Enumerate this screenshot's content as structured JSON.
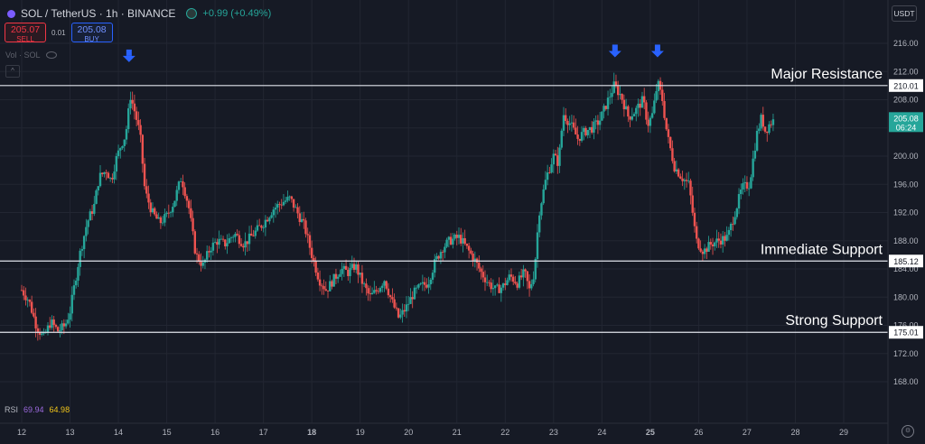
{
  "header": {
    "title": "SOL / TetherUS · 1h · BINANCE",
    "change": "+0.99 (+0.49%)"
  },
  "trade": {
    "sell_price": "205.07",
    "sell_label": "SELL",
    "spread": "0.01",
    "buy_price": "205.08",
    "buy_label": "BUY"
  },
  "volume_label": "Vol · SOL",
  "currency_button": "USDT",
  "rsi": {
    "label": "RSI",
    "value1": "69.94",
    "value2": "64.98"
  },
  "colors": {
    "up": "#26a69a",
    "down": "#ef5350",
    "level_line": "#e0e3eb",
    "arrow": "#2962ff",
    "background": "#161a25"
  },
  "chart_data": {
    "type": "candlestick",
    "y_axis": {
      "ticks": [
        168,
        172,
        176,
        180,
        184,
        188,
        192,
        196,
        200,
        204,
        208,
        212,
        216
      ],
      "tick_labels": [
        "168.00",
        "172.00",
        "176.00",
        "180.00",
        "184.00",
        "188.00",
        "192.00",
        "196.00",
        "200.00",
        "204.00",
        "208.00",
        "212.00",
        "216.00"
      ],
      "range": [
        165,
        219
      ]
    },
    "x_axis": {
      "labels": [
        {
          "day": 12,
          "label": "12",
          "bold": false
        },
        {
          "day": 13,
          "label": "13",
          "bold": false
        },
        {
          "day": 14,
          "label": "14",
          "bold": false
        },
        {
          "day": 15,
          "label": "15",
          "bold": false
        },
        {
          "day": 16,
          "label": "16",
          "bold": false
        },
        {
          "day": 17,
          "label": "17",
          "bold": false
        },
        {
          "day": 18,
          "label": "18",
          "bold": true
        },
        {
          "day": 19,
          "label": "19",
          "bold": false
        },
        {
          "day": 20,
          "label": "20",
          "bold": false
        },
        {
          "day": 21,
          "label": "21",
          "bold": false
        },
        {
          "day": 22,
          "label": "22",
          "bold": false
        },
        {
          "day": 23,
          "label": "23",
          "bold": false
        },
        {
          "day": 24,
          "label": "24",
          "bold": false
        },
        {
          "day": 25,
          "label": "25",
          "bold": true
        },
        {
          "day": 26,
          "label": "26",
          "bold": false
        },
        {
          "day": 27,
          "label": "27",
          "bold": false
        },
        {
          "day": 28,
          "label": "28",
          "bold": false
        },
        {
          "day": 29,
          "label": "29",
          "bold": false
        }
      ],
      "range": [
        11.6,
        29.9
      ]
    },
    "horizontal_levels": [
      {
        "price": 210.01,
        "label": "210.01",
        "annotation": "Major Resistance"
      },
      {
        "price": 185.12,
        "label": "185.12",
        "annotation": "Immediate Support"
      },
      {
        "price": 175.01,
        "label": "175.01",
        "annotation": "Strong Support"
      }
    ],
    "current_price": {
      "price": 205.08,
      "label": "205.08",
      "countdown": "06:24"
    },
    "markers": [
      {
        "day": 14.22,
        "price": 212.3,
        "type": "arrow-down"
      },
      {
        "day": 24.27,
        "price": 213.0,
        "type": "arrow-down"
      },
      {
        "day": 25.15,
        "price": 213.0,
        "type": "arrow-down"
      }
    ],
    "price_path": [
      [
        12.0,
        181.0
      ],
      [
        12.15,
        179.5
      ],
      [
        12.3,
        176.0
      ],
      [
        12.45,
        174.2
      ],
      [
        12.6,
        176.5
      ],
      [
        12.75,
        175.2
      ],
      [
        12.9,
        176.0
      ],
      [
        13.0,
        178.0
      ],
      [
        13.1,
        182.0
      ],
      [
        13.2,
        186.0
      ],
      [
        13.35,
        190.5
      ],
      [
        13.5,
        193.0
      ],
      [
        13.6,
        197.0
      ],
      [
        13.75,
        198.0
      ],
      [
        13.85,
        196.5
      ],
      [
        13.95,
        199.5
      ],
      [
        14.05,
        201.5
      ],
      [
        14.15,
        203.0
      ],
      [
        14.25,
        208.5
      ],
      [
        14.35,
        206.0
      ],
      [
        14.45,
        203.0
      ],
      [
        14.55,
        195.0
      ],
      [
        14.7,
        192.0
      ],
      [
        14.85,
        190.5
      ],
      [
        15.0,
        191.5
      ],
      [
        15.15,
        193.5
      ],
      [
        15.3,
        197.0
      ],
      [
        15.45,
        193.0
      ],
      [
        15.6,
        186.0
      ],
      [
        15.75,
        184.5
      ],
      [
        15.9,
        187.0
      ],
      [
        16.05,
        188.0
      ],
      [
        16.2,
        187.5
      ],
      [
        16.4,
        189.0
      ],
      [
        16.6,
        187.5
      ],
      [
        16.8,
        189.0
      ],
      [
        17.0,
        190.5
      ],
      [
        17.2,
        192.5
      ],
      [
        17.4,
        193.5
      ],
      [
        17.55,
        194.0
      ],
      [
        17.7,
        192.0
      ],
      [
        17.85,
        190.0
      ],
      [
        18.0,
        186.0
      ],
      [
        18.15,
        182.5
      ],
      [
        18.3,
        181.0
      ],
      [
        18.45,
        182.5
      ],
      [
        18.6,
        184.0
      ],
      [
        18.75,
        183.5
      ],
      [
        18.9,
        184.5
      ],
      [
        19.05,
        182.0
      ],
      [
        19.2,
        180.0
      ],
      [
        19.35,
        181.0
      ],
      [
        19.5,
        182.5
      ],
      [
        19.65,
        179.5
      ],
      [
        19.8,
        177.0
      ],
      [
        19.95,
        178.5
      ],
      [
        20.1,
        180.5
      ],
      [
        20.25,
        181.5
      ],
      [
        20.4,
        182.0
      ],
      [
        20.55,
        185.0
      ],
      [
        20.7,
        187.0
      ],
      [
        20.85,
        188.0
      ],
      [
        21.05,
        188.5
      ],
      [
        21.2,
        187.0
      ],
      [
        21.35,
        185.5
      ],
      [
        21.5,
        183.5
      ],
      [
        21.65,
        182.0
      ],
      [
        21.8,
        181.0
      ],
      [
        21.95,
        181.5
      ],
      [
        22.1,
        183.0
      ],
      [
        22.25,
        182.0
      ],
      [
        22.4,
        183.5
      ],
      [
        22.5,
        181.0
      ],
      [
        22.6,
        183.5
      ],
      [
        22.7,
        192.0
      ],
      [
        22.85,
        197.0
      ],
      [
        23.0,
        200.0
      ],
      [
        23.1,
        199.0
      ],
      [
        23.2,
        206.0
      ],
      [
        23.35,
        204.5
      ],
      [
        23.5,
        202.5
      ],
      [
        23.65,
        203.5
      ],
      [
        23.8,
        204.0
      ],
      [
        23.95,
        205.0
      ],
      [
        24.1,
        207.5
      ],
      [
        24.25,
        210.0
      ],
      [
        24.4,
        208.5
      ],
      [
        24.55,
        205.5
      ],
      [
        24.7,
        206.5
      ],
      [
        24.85,
        208.0
      ],
      [
        24.95,
        204.5
      ],
      [
        25.05,
        206.0
      ],
      [
        25.15,
        210.5
      ],
      [
        25.25,
        208.0
      ],
      [
        25.35,
        203.0
      ],
      [
        25.5,
        198.5
      ],
      [
        25.65,
        197.0
      ],
      [
        25.8,
        196.0
      ],
      [
        25.95,
        188.0
      ],
      [
        26.1,
        186.5
      ],
      [
        26.25,
        187.5
      ],
      [
        26.4,
        188.0
      ],
      [
        26.6,
        188.5
      ],
      [
        26.75,
        192.0
      ],
      [
        26.9,
        195.5
      ],
      [
        27.05,
        196.0
      ],
      [
        27.2,
        203.0
      ],
      [
        27.3,
        205.5
      ],
      [
        27.38,
        203.5
      ],
      [
        27.46,
        204.5
      ],
      [
        27.55,
        205.08
      ]
    ]
  }
}
